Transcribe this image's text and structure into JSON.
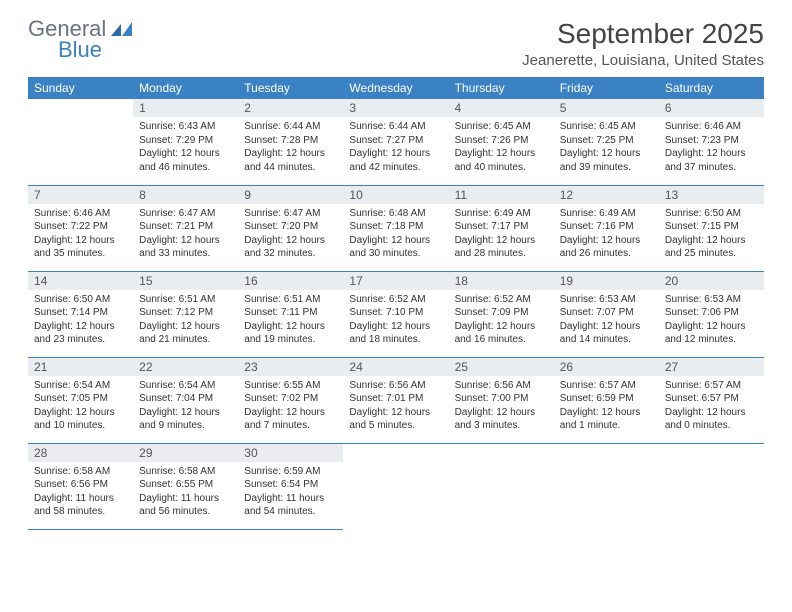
{
  "logo": {
    "word1": "General",
    "word2": "Blue"
  },
  "title": "September 2025",
  "location": "Jeanerette, Louisiana, United States",
  "colors": {
    "header_bg": "#3b82c4",
    "header_fg": "#ffffff",
    "daynum_bg": "#e9edf0",
    "cell_border": "#3b82c4",
    "text": "#333333"
  },
  "fonts": {
    "title_size": 28,
    "location_size": 15,
    "header_cell_size": 12,
    "body_size": 10
  },
  "weekdays": [
    "Sunday",
    "Monday",
    "Tuesday",
    "Wednesday",
    "Thursday",
    "Friday",
    "Saturday"
  ],
  "weeks": [
    [
      null,
      {
        "n": "1",
        "sr": "Sunrise: 6:43 AM",
        "ss": "Sunset: 7:29 PM",
        "dl": "Daylight: 12 hours and 46 minutes."
      },
      {
        "n": "2",
        "sr": "Sunrise: 6:44 AM",
        "ss": "Sunset: 7:28 PM",
        "dl": "Daylight: 12 hours and 44 minutes."
      },
      {
        "n": "3",
        "sr": "Sunrise: 6:44 AM",
        "ss": "Sunset: 7:27 PM",
        "dl": "Daylight: 12 hours and 42 minutes."
      },
      {
        "n": "4",
        "sr": "Sunrise: 6:45 AM",
        "ss": "Sunset: 7:26 PM",
        "dl": "Daylight: 12 hours and 40 minutes."
      },
      {
        "n": "5",
        "sr": "Sunrise: 6:45 AM",
        "ss": "Sunset: 7:25 PM",
        "dl": "Daylight: 12 hours and 39 minutes."
      },
      {
        "n": "6",
        "sr": "Sunrise: 6:46 AM",
        "ss": "Sunset: 7:23 PM",
        "dl": "Daylight: 12 hours and 37 minutes."
      }
    ],
    [
      {
        "n": "7",
        "sr": "Sunrise: 6:46 AM",
        "ss": "Sunset: 7:22 PM",
        "dl": "Daylight: 12 hours and 35 minutes."
      },
      {
        "n": "8",
        "sr": "Sunrise: 6:47 AM",
        "ss": "Sunset: 7:21 PM",
        "dl": "Daylight: 12 hours and 33 minutes."
      },
      {
        "n": "9",
        "sr": "Sunrise: 6:47 AM",
        "ss": "Sunset: 7:20 PM",
        "dl": "Daylight: 12 hours and 32 minutes."
      },
      {
        "n": "10",
        "sr": "Sunrise: 6:48 AM",
        "ss": "Sunset: 7:18 PM",
        "dl": "Daylight: 12 hours and 30 minutes."
      },
      {
        "n": "11",
        "sr": "Sunrise: 6:49 AM",
        "ss": "Sunset: 7:17 PM",
        "dl": "Daylight: 12 hours and 28 minutes."
      },
      {
        "n": "12",
        "sr": "Sunrise: 6:49 AM",
        "ss": "Sunset: 7:16 PM",
        "dl": "Daylight: 12 hours and 26 minutes."
      },
      {
        "n": "13",
        "sr": "Sunrise: 6:50 AM",
        "ss": "Sunset: 7:15 PM",
        "dl": "Daylight: 12 hours and 25 minutes."
      }
    ],
    [
      {
        "n": "14",
        "sr": "Sunrise: 6:50 AM",
        "ss": "Sunset: 7:14 PM",
        "dl": "Daylight: 12 hours and 23 minutes."
      },
      {
        "n": "15",
        "sr": "Sunrise: 6:51 AM",
        "ss": "Sunset: 7:12 PM",
        "dl": "Daylight: 12 hours and 21 minutes."
      },
      {
        "n": "16",
        "sr": "Sunrise: 6:51 AM",
        "ss": "Sunset: 7:11 PM",
        "dl": "Daylight: 12 hours and 19 minutes."
      },
      {
        "n": "17",
        "sr": "Sunrise: 6:52 AM",
        "ss": "Sunset: 7:10 PM",
        "dl": "Daylight: 12 hours and 18 minutes."
      },
      {
        "n": "18",
        "sr": "Sunrise: 6:52 AM",
        "ss": "Sunset: 7:09 PM",
        "dl": "Daylight: 12 hours and 16 minutes."
      },
      {
        "n": "19",
        "sr": "Sunrise: 6:53 AM",
        "ss": "Sunset: 7:07 PM",
        "dl": "Daylight: 12 hours and 14 minutes."
      },
      {
        "n": "20",
        "sr": "Sunrise: 6:53 AM",
        "ss": "Sunset: 7:06 PM",
        "dl": "Daylight: 12 hours and 12 minutes."
      }
    ],
    [
      {
        "n": "21",
        "sr": "Sunrise: 6:54 AM",
        "ss": "Sunset: 7:05 PM",
        "dl": "Daylight: 12 hours and 10 minutes."
      },
      {
        "n": "22",
        "sr": "Sunrise: 6:54 AM",
        "ss": "Sunset: 7:04 PM",
        "dl": "Daylight: 12 hours and 9 minutes."
      },
      {
        "n": "23",
        "sr": "Sunrise: 6:55 AM",
        "ss": "Sunset: 7:02 PM",
        "dl": "Daylight: 12 hours and 7 minutes."
      },
      {
        "n": "24",
        "sr": "Sunrise: 6:56 AM",
        "ss": "Sunset: 7:01 PM",
        "dl": "Daylight: 12 hours and 5 minutes."
      },
      {
        "n": "25",
        "sr": "Sunrise: 6:56 AM",
        "ss": "Sunset: 7:00 PM",
        "dl": "Daylight: 12 hours and 3 minutes."
      },
      {
        "n": "26",
        "sr": "Sunrise: 6:57 AM",
        "ss": "Sunset: 6:59 PM",
        "dl": "Daylight: 12 hours and 1 minute."
      },
      {
        "n": "27",
        "sr": "Sunrise: 6:57 AM",
        "ss": "Sunset: 6:57 PM",
        "dl": "Daylight: 12 hours and 0 minutes."
      }
    ],
    [
      {
        "n": "28",
        "sr": "Sunrise: 6:58 AM",
        "ss": "Sunset: 6:56 PM",
        "dl": "Daylight: 11 hours and 58 minutes."
      },
      {
        "n": "29",
        "sr": "Sunrise: 6:58 AM",
        "ss": "Sunset: 6:55 PM",
        "dl": "Daylight: 11 hours and 56 minutes."
      },
      {
        "n": "30",
        "sr": "Sunrise: 6:59 AM",
        "ss": "Sunset: 6:54 PM",
        "dl": "Daylight: 11 hours and 54 minutes."
      },
      null,
      null,
      null,
      null
    ]
  ]
}
